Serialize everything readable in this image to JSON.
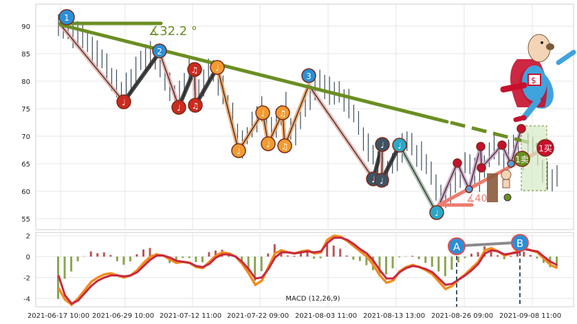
{
  "chart_data": [
    {
      "type": "line",
      "panel": "price",
      "x_ticks": [
        "2021-06-17 10:00",
        "2021-06-29 10:00",
        "2021-07-12 11:00",
        "2021-07-22 09:00",
        "2021-08-03 11:00",
        "2021-08-13 13:00",
        "2021-08-26 09:00",
        "2021-09-08 11:00"
      ],
      "y_ticks": [
        55,
        60,
        65,
        70,
        75,
        80,
        85,
        90
      ],
      "ylim": [
        53,
        94
      ],
      "grid": true,
      "series": [
        {
          "values": [
            91,
            90,
            89,
            88.5,
            89,
            88,
            87,
            86,
            85,
            84,
            82.5,
            81,
            79.5,
            78.5,
            79,
            80.5,
            82,
            83.5,
            84.5,
            85,
            84,
            82.5,
            81,
            79,
            78,
            77.5,
            80,
            82,
            79.5,
            78,
            80,
            82,
            81.5,
            80,
            78.5,
            76,
            73.5,
            71,
            68.5,
            70,
            72,
            73.5,
            75,
            73,
            71.5,
            72.5,
            74,
            75.5,
            72,
            71,
            73,
            75.5,
            77.5,
            79,
            80,
            79,
            78.5,
            78,
            77.5,
            77,
            76,
            74.5,
            72,
            70,
            68,
            66.5,
            65,
            64,
            63.5,
            64.5,
            66,
            68,
            69.5,
            68,
            67,
            66.5,
            65,
            63,
            61,
            59,
            58.5,
            60,
            62.5,
            63,
            64.5,
            65.5,
            63.5,
            62,
            64,
            67,
            68.5,
            66.5,
            65.5,
            67,
            68.5,
            67.5,
            66,
            68,
            68.5,
            66,
            64,
            63,
            62,
            62.5
          ]
        }
      ],
      "labels": {
        "angle_top": "∡32.2 °",
        "angle_bottom": "∡40.",
        "wave_1": "1",
        "wave_2": "2",
        "wave_3": "3",
        "note": "♩",
        "double_note": "♫",
        "sell_label": "1卖",
        "buy_label": "1买"
      }
    },
    {
      "type": "line",
      "panel": "macd",
      "title": "MACD (12,26,9)",
      "y_ticks": [
        -4,
        -2,
        0,
        2
      ],
      "ylim": [
        -4.8,
        2.3
      ],
      "grid": true,
      "series": [
        {
          "color": "#f28c1f",
          "values": [
            -3,
            -4.1,
            -4.6,
            -4,
            -3.2,
            -2.4,
            -2,
            -1.7,
            -1.6,
            -1.8,
            -2,
            -1.8,
            -1.3,
            -0.6,
            0,
            0.2,
            0.1,
            -0.3,
            -0.6,
            -0.5,
            -0.6,
            -1,
            -1.1,
            -0.5,
            0.1,
            0.4,
            0.3,
            0,
            -0.7,
            -1.6,
            -2.7,
            -2.3,
            -1,
            0.3,
            0.6,
            0.4,
            0.3,
            0.5,
            0.6,
            0.3,
            0.4,
            1.6,
            2,
            1.9,
            1.5,
            1,
            0.5,
            0,
            -0.8,
            -1.8,
            -2.5,
            -2.3,
            -1.4,
            -1,
            -0.8,
            -1,
            -1.3,
            -1.7,
            -2.4,
            -3.1,
            -2.8,
            -2.2,
            -1.7,
            -1.1,
            -0.5,
            0.6,
            0.8,
            0.5,
            0.1,
            0.3,
            0.5,
            0.8,
            0.6,
            0.4,
            -0.2,
            -0.8,
            -1.1
          ]
        },
        {
          "color": "#c9283e",
          "values": [
            -1.8,
            -3.7,
            -4.5,
            -4.2,
            -3.5,
            -2.8,
            -2.3,
            -2,
            -1.8,
            -1.8,
            -1.9,
            -1.8,
            -1.5,
            -0.9,
            -0.3,
            0.1,
            0.1,
            -0.1,
            -0.4,
            -0.5,
            -0.6,
            -0.9,
            -1,
            -0.7,
            -0.1,
            0.2,
            0.2,
            0,
            -0.5,
            -1.2,
            -2.1,
            -2,
            -1.2,
            -0.1,
            0.4,
            0.4,
            0.3,
            0.4,
            0.5,
            0.4,
            0.5,
            1.3,
            1.8,
            1.8,
            1.6,
            1.2,
            0.7,
            0.3,
            -0.4,
            -1.3,
            -2.1,
            -2.1,
            -1.5,
            -1.1,
            -0.9,
            -1,
            -1.2,
            -1.5,
            -2.1,
            -2.7,
            -2.6,
            -2.2,
            -1.8,
            -1.3,
            -0.7,
            0.3,
            0.6,
            0.5,
            0.2,
            0.3,
            0.4,
            0.7,
            0.6,
            0.5,
            0,
            -0.5,
            -0.8
          ]
        }
      ],
      "markers": [
        {
          "label": "A"
        },
        {
          "label": "B"
        }
      ]
    }
  ]
}
